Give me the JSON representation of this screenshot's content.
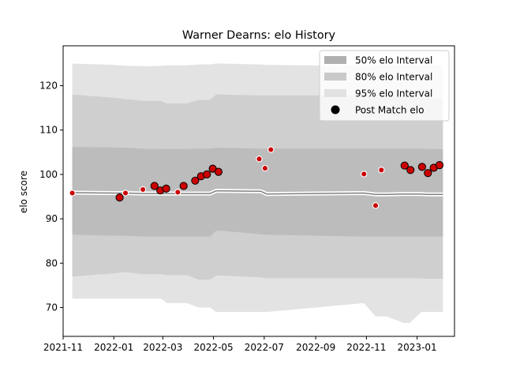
{
  "chart_data": {
    "type": "area",
    "title": "Warner Dearns: elo History",
    "xlabel": "",
    "ylabel": "elo score",
    "x_range": [
      "2021-11-01",
      "2023-02-15"
    ],
    "ylim": [
      63.5,
      129.0
    ],
    "x_ticks": [
      {
        "date": "2021-11-01",
        "label": "2021-11"
      },
      {
        "date": "2022-01-01",
        "label": "2022-01"
      },
      {
        "date": "2022-03-01",
        "label": "2022-03"
      },
      {
        "date": "2022-05-01",
        "label": "2022-05"
      },
      {
        "date": "2022-07-01",
        "label": "2022-07"
      },
      {
        "date": "2022-09-01",
        "label": "2022-09"
      },
      {
        "date": "2022-11-01",
        "label": "2022-11"
      },
      {
        "date": "2023-01-01",
        "label": "2023-01"
      }
    ],
    "y_ticks": [
      70,
      80,
      90,
      100,
      110,
      120
    ],
    "grid": false,
    "legend_position": "top-right",
    "colors": {
      "band_95": "#e3e3e3",
      "band_80": "#cfcfcf",
      "band_50": "#bcbcbc",
      "mean_line": "#808080",
      "mean_halo": "#ffffff",
      "point_fill": "#cc0000",
      "legend_swatch_50": "#b0b0b0",
      "legend_swatch_80": "#c9c9c9",
      "legend_swatch_95": "#e2e2e2"
    },
    "series": [
      {
        "name": "95% elo Interval",
        "kind": "band",
        "x": [
          "2021-11-12",
          "2022-01-01",
          "2022-01-15",
          "2022-02-05",
          "2022-02-20",
          "2022-02-27",
          "2022-03-06",
          "2022-03-30",
          "2022-04-13",
          "2022-04-27",
          "2022-05-04",
          "2022-05-11",
          "2022-06-27",
          "2022-07-04",
          "2022-10-29",
          "2022-11-12",
          "2022-11-25",
          "2022-12-16",
          "2022-12-23",
          "2023-01-06",
          "2023-01-13",
          "2023-02-01"
        ],
        "lower": [
          72.0,
          72.0,
          72.0,
          72.0,
          72.0,
          72.0,
          71.0,
          71.0,
          70.0,
          70.0,
          69.0,
          69.0,
          69.0,
          69.0,
          71.0,
          68.0,
          68.0,
          66.5,
          66.5,
          69.0,
          69.0,
          69.0
        ],
        "upper": [
          125.0,
          124.7,
          124.5,
          124.4,
          124.4,
          124.5,
          124.6,
          124.6,
          124.8,
          124.8,
          125.0,
          125.0,
          124.8,
          124.7,
          124.5,
          124.5,
          124.5,
          124.5,
          124.5,
          124.5,
          124.5,
          124.6
        ]
      },
      {
        "name": "80% elo Interval",
        "kind": "band",
        "x": [
          "2021-11-12",
          "2022-01-01",
          "2022-01-15",
          "2022-02-05",
          "2022-02-20",
          "2022-02-27",
          "2022-03-06",
          "2022-03-30",
          "2022-04-13",
          "2022-04-27",
          "2022-05-04",
          "2022-05-11",
          "2022-06-27",
          "2022-07-04",
          "2022-10-29",
          "2022-11-12",
          "2022-11-25",
          "2022-12-16",
          "2022-12-23",
          "2023-01-06",
          "2023-01-13",
          "2023-02-01"
        ],
        "lower": [
          77.0,
          77.7,
          78.0,
          77.5,
          77.5,
          77.5,
          77.3,
          77.3,
          76.3,
          76.3,
          77.2,
          77.2,
          76.8,
          76.6,
          76.6,
          76.6,
          76.6,
          76.6,
          76.6,
          76.6,
          76.5,
          76.5
        ],
        "upper": [
          118.0,
          117.3,
          117.0,
          116.6,
          116.6,
          116.5,
          116.0,
          116.0,
          116.8,
          116.8,
          118.0,
          118.0,
          117.8,
          117.8,
          117.8,
          117.8,
          117.8,
          117.5,
          117.5,
          117.5,
          117.2,
          117.0
        ]
      },
      {
        "name": "50% elo Interval",
        "kind": "band",
        "x": [
          "2021-11-12",
          "2022-01-01",
          "2022-01-15",
          "2022-02-05",
          "2022-02-20",
          "2022-02-27",
          "2022-03-06",
          "2022-03-30",
          "2022-04-13",
          "2022-04-27",
          "2022-05-04",
          "2022-05-11",
          "2022-06-27",
          "2022-07-04",
          "2022-10-29",
          "2022-11-12",
          "2022-11-25",
          "2022-12-16",
          "2022-12-23",
          "2023-01-06",
          "2023-01-13",
          "2023-02-01"
        ],
        "lower": [
          86.4,
          86.2,
          86.2,
          86.0,
          86.0,
          86.0,
          86.0,
          86.0,
          86.0,
          86.0,
          87.3,
          87.3,
          86.5,
          86.4,
          86.0,
          86.0,
          86.0,
          86.0,
          86.0,
          86.0,
          86.0,
          86.0
        ],
        "upper": [
          106.2,
          106.1,
          106.0,
          105.8,
          105.7,
          105.7,
          105.7,
          105.7,
          105.8,
          105.8,
          106.0,
          106.0,
          105.8,
          105.8,
          105.8,
          105.8,
          105.8,
          105.8,
          105.8,
          105.8,
          105.7,
          105.7
        ]
      },
      {
        "name": "mean",
        "kind": "line",
        "x": [
          "2021-11-12",
          "2022-01-01",
          "2022-01-15",
          "2022-02-05",
          "2022-02-20",
          "2022-02-27",
          "2022-03-06",
          "2022-03-30",
          "2022-04-13",
          "2022-04-27",
          "2022-05-04",
          "2022-05-11",
          "2022-06-27",
          "2022-07-04",
          "2022-10-29",
          "2022-11-12",
          "2022-11-25",
          "2022-12-16",
          "2022-12-23",
          "2023-01-06",
          "2023-01-13",
          "2023-02-01"
        ],
        "values": [
          95.9,
          95.8,
          95.8,
          95.7,
          95.7,
          95.7,
          95.7,
          95.7,
          95.7,
          95.7,
          96.3,
          96.3,
          96.2,
          95.6,
          95.8,
          95.5,
          95.5,
          95.6,
          95.6,
          95.6,
          95.5,
          95.5
        ]
      },
      {
        "name": "Post Match elo",
        "kind": "scatter",
        "points": [
          {
            "x": "2021-11-12",
            "y": 95.8,
            "size": "small"
          },
          {
            "x": "2022-01-08",
            "y": 94.8,
            "size": "large"
          },
          {
            "x": "2022-01-15",
            "y": 95.8,
            "size": "small"
          },
          {
            "x": "2022-02-05",
            "y": 96.6,
            "size": "small"
          },
          {
            "x": "2022-02-19",
            "y": 97.4,
            "size": "large"
          },
          {
            "x": "2022-02-26",
            "y": 96.4,
            "size": "large"
          },
          {
            "x": "2022-03-05",
            "y": 96.8,
            "size": "large"
          },
          {
            "x": "2022-03-19",
            "y": 96.0,
            "size": "small"
          },
          {
            "x": "2022-03-26",
            "y": 97.4,
            "size": "large"
          },
          {
            "x": "2022-04-09",
            "y": 98.6,
            "size": "large"
          },
          {
            "x": "2022-04-16",
            "y": 99.6,
            "size": "large"
          },
          {
            "x": "2022-04-23",
            "y": 100.0,
            "size": "large"
          },
          {
            "x": "2022-04-30",
            "y": 101.3,
            "size": "large"
          },
          {
            "x": "2022-05-07",
            "y": 100.6,
            "size": "large"
          },
          {
            "x": "2022-06-25",
            "y": 103.5,
            "size": "small"
          },
          {
            "x": "2022-07-02",
            "y": 101.4,
            "size": "small"
          },
          {
            "x": "2022-07-09",
            "y": 105.6,
            "size": "small"
          },
          {
            "x": "2022-10-29",
            "y": 100.1,
            "size": "small"
          },
          {
            "x": "2022-11-12",
            "y": 93.0,
            "size": "small"
          },
          {
            "x": "2022-11-19",
            "y": 101.0,
            "size": "small"
          },
          {
            "x": "2022-12-17",
            "y": 102.0,
            "size": "large"
          },
          {
            "x": "2022-12-24",
            "y": 101.0,
            "size": "large"
          },
          {
            "x": "2023-01-07",
            "y": 101.7,
            "size": "large"
          },
          {
            "x": "2023-01-14",
            "y": 100.3,
            "size": "large"
          },
          {
            "x": "2023-01-21",
            "y": 101.5,
            "size": "large"
          },
          {
            "x": "2023-01-28",
            "y": 102.1,
            "size": "large"
          }
        ]
      }
    ],
    "legend": [
      {
        "label": "50% elo Interval",
        "marker": "patch",
        "color_key": "legend_swatch_50"
      },
      {
        "label": "80% elo Interval",
        "marker": "patch",
        "color_key": "legend_swatch_80"
      },
      {
        "label": "95% elo Interval",
        "marker": "patch",
        "color_key": "legend_swatch_95"
      },
      {
        "label": "Post Match elo",
        "marker": "dot",
        "color_key": "point_fill"
      }
    ]
  }
}
